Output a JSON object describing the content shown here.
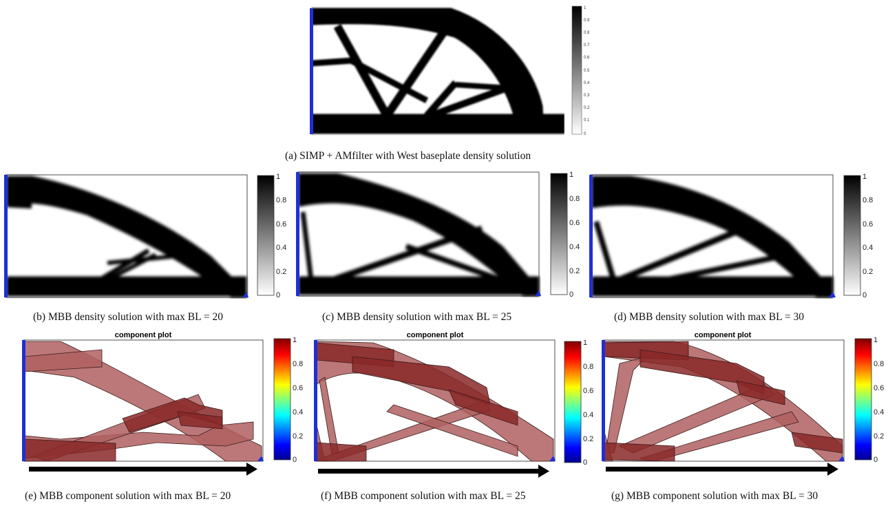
{
  "figure_a": {
    "caption": "(a) SIMP + AMfilter with West baseplate density solution",
    "colorbar_ticks": [
      "0",
      "0.1",
      "0.2",
      "0.3",
      "0.4",
      "0.5",
      "0.6",
      "0.7",
      "0.8",
      "0.9",
      "1"
    ]
  },
  "density_panels": [
    {
      "caption": "(b) MBB density solution with max BL = 20",
      "colorbar_ticks": [
        "0",
        "0.2",
        "0.4",
        "0.6",
        "0.8",
        "1"
      ]
    },
    {
      "caption": "(c) MBB density solution with max BL = 25",
      "colorbar_ticks": [
        "0",
        "0.2",
        "0.4",
        "0.6",
        "0.8",
        "1"
      ]
    },
    {
      "caption": "(d) MBB density solution with max BL = 30",
      "colorbar_ticks": [
        "0",
        "0.2",
        "0.4",
        "0.6",
        "0.8",
        "1"
      ]
    }
  ],
  "component_panels": [
    {
      "caption": "(e) MBB component solution with max BL = 20",
      "plot_title": "component plot",
      "colorbar_ticks": [
        "0",
        "0.2",
        "0.4",
        "0.6",
        "0.8",
        "1"
      ]
    },
    {
      "caption": "(f) MBB component solution with max BL = 25",
      "plot_title": "component plot",
      "colorbar_ticks": [
        "0",
        "0.2",
        "0.4",
        "0.6",
        "0.8",
        "1"
      ]
    },
    {
      "caption": "(g) MBB component solution with max BL = 30",
      "plot_title": "component plot",
      "colorbar_ticks": [
        "0",
        "0.2",
        "0.4",
        "0.6",
        "0.8",
        "1"
      ]
    }
  ],
  "colors": {
    "material": "#000000",
    "boundary": "#1f2fd6",
    "component_fill": "#b06060",
    "component_dark": "#8a2828",
    "arrow": "#000000"
  }
}
